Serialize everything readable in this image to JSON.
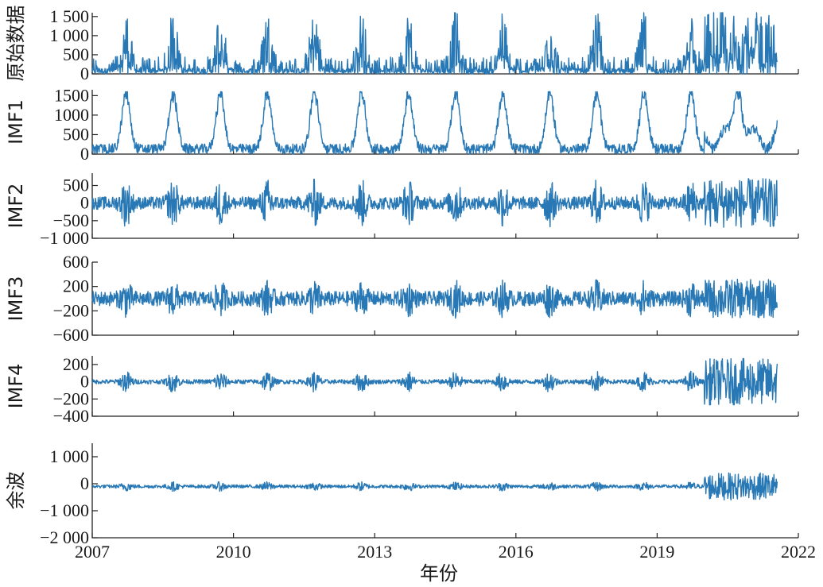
{
  "chart_data": {
    "type": "line",
    "title": "",
    "xlabel": "年份",
    "xlim": [
      2007,
      2022
    ],
    "xticks": [
      2007,
      2010,
      2013,
      2016,
      2019,
      2022
    ],
    "xtick_labels": [
      "2007",
      "2010",
      "2013",
      "2016",
      "2019",
      "2022"
    ],
    "data_x_range": [
      2007,
      2021.55
    ],
    "line_color": "#2878b5",
    "subplots": [
      {
        "name": "原始数据",
        "ylabel": "原始数据",
        "ylim": [
          0,
          1600
        ],
        "yticks": [
          0,
          500,
          1000,
          1500
        ],
        "ytick_labels": [
          "0",
          "500",
          "1 000",
          "1 500"
        ],
        "signal": {
          "kind": "raw",
          "mean": 0,
          "amp": 1600,
          "calm_amp": 420,
          "high_after": 2020
        }
      },
      {
        "name": "IMF1",
        "ylabel": "IMF1",
        "ylim": [
          0,
          1650
        ],
        "yticks": [
          0,
          500,
          1000,
          1500
        ],
        "ytick_labels": [
          "0",
          "500",
          "1000",
          "1500"
        ],
        "signal": {
          "kind": "seasonal",
          "mean": 0,
          "amp": 1600,
          "calm_amp": 260,
          "high_after": 2020
        }
      },
      {
        "name": "IMF2",
        "ylabel": "IMF2",
        "ylim": [
          -1000,
          850
        ],
        "yticks": [
          -1000,
          -500,
          0,
          500
        ],
        "ytick_labels": [
          "−1 000",
          "−500",
          "0",
          "500"
        ],
        "signal": {
          "kind": "osc",
          "mean": 0,
          "amp": 700,
          "calm_amp": 180,
          "high_after": 2020
        }
      },
      {
        "name": "IMF3",
        "ylabel": "IMF3",
        "ylim": [
          -600,
          600
        ],
        "yticks": [
          -600,
          -200,
          200,
          600
        ],
        "ytick_labels": [
          "−600",
          "−200",
          "200",
          "600"
        ],
        "signal": {
          "kind": "osc",
          "mean": 0,
          "amp": 320,
          "calm_amp": 120,
          "high_after": 2020
        }
      },
      {
        "name": "IMF4",
        "ylabel": "IMF4",
        "ylim": [
          -400,
          300
        ],
        "yticks": [
          -400,
          -200,
          0,
          200
        ],
        "ytick_labels": [
          "−400",
          "−200",
          "0",
          "200"
        ],
        "signal": {
          "kind": "osc",
          "mean": 0,
          "amp": 130,
          "calm_amp": 25,
          "high_after": 2020,
          "high_amp": 270
        }
      },
      {
        "name": "余波",
        "ylabel": "余波",
        "ylim": [
          -2000,
          1500
        ],
        "yticks": [
          -2000,
          -1000,
          0,
          1000
        ],
        "ytick_labels": [
          "−2 000",
          "−1 000",
          "0",
          "1 000"
        ],
        "signal": {
          "kind": "osc",
          "mean": -100,
          "amp": 180,
          "calm_amp": 60,
          "high_after": 2020,
          "high_amp": 500
        }
      }
    ]
  }
}
